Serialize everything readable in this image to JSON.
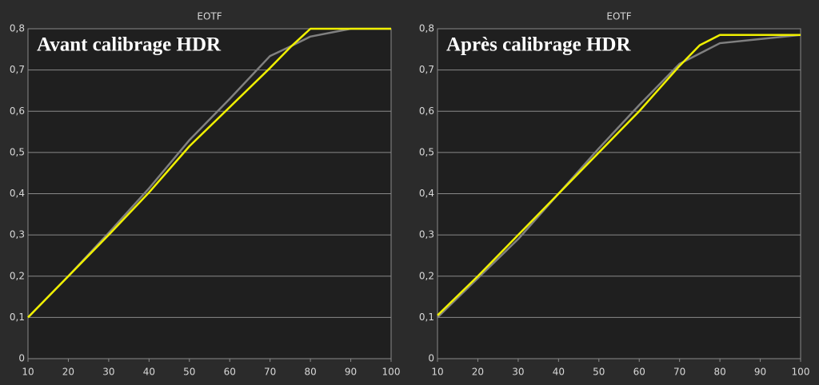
{
  "chart_data": [
    {
      "type": "line",
      "title": "EOTF",
      "annotation": "Avant calibrage HDR",
      "x": [
        10,
        20,
        30,
        40,
        50,
        60,
        70,
        75,
        80,
        90,
        100
      ],
      "series": [
        {
          "color": "#808080",
          "values": [
            0.1,
            0.2,
            0.305,
            0.413,
            0.53,
            0.63,
            0.734,
            0.757,
            0.781,
            0.8,
            0.8
          ]
        },
        {
          "color": "#f0f000",
          "values": [
            0.1,
            0.2,
            0.3,
            0.403,
            0.515,
            0.61,
            0.705,
            0.755,
            0.8,
            0.8,
            0.8
          ]
        }
      ],
      "xlim": [
        10,
        100
      ],
      "xticks": [
        10,
        20,
        30,
        40,
        50,
        60,
        70,
        80,
        90,
        100
      ],
      "ylim": [
        0,
        0.8
      ],
      "yticks": [
        0,
        {
          "value": 0.1,
          "label": "0,1"
        },
        {
          "value": 0.2,
          "label": "0,2"
        },
        {
          "value": 0.3,
          "label": "0,3"
        },
        {
          "value": 0.4,
          "label": "0,4"
        },
        {
          "value": 0.5,
          "label": "0,5"
        },
        {
          "value": 0.6,
          "label": "0,6"
        },
        {
          "value": 0.7,
          "label": "0,7"
        },
        {
          "value": 0.8,
          "label": "0,8"
        }
      ],
      "grid": true
    },
    {
      "type": "line",
      "title": "EOTF",
      "annotation": "Après calibrage HDR",
      "x": [
        10,
        20,
        30,
        40,
        50,
        60,
        70,
        75,
        80,
        90,
        100
      ],
      "series": [
        {
          "color": "#808080",
          "values": [
            0.1,
            0.195,
            0.29,
            0.4,
            0.51,
            0.615,
            0.715,
            0.74,
            0.765,
            0.775,
            0.785
          ]
        },
        {
          "color": "#f0f000",
          "values": [
            0.105,
            0.2,
            0.3,
            0.4,
            0.5,
            0.6,
            0.71,
            0.76,
            0.785,
            0.785,
            0.785
          ]
        }
      ],
      "xlim": [
        10,
        100
      ],
      "xticks": [
        10,
        20,
        30,
        40,
        50,
        60,
        70,
        80,
        90,
        100
      ],
      "ylim": [
        0,
        0.8
      ],
      "yticks": [
        0,
        {
          "value": 0.1,
          "label": "0,1"
        },
        {
          "value": 0.2,
          "label": "0,2"
        },
        {
          "value": 0.3,
          "label": "0,3"
        },
        {
          "value": 0.4,
          "label": "0,4"
        },
        {
          "value": 0.5,
          "label": "0,5"
        },
        {
          "value": 0.6,
          "label": "0,6"
        },
        {
          "value": 0.7,
          "label": "0,7"
        },
        {
          "value": 0.8,
          "label": "0,8"
        }
      ],
      "grid": true
    }
  ]
}
